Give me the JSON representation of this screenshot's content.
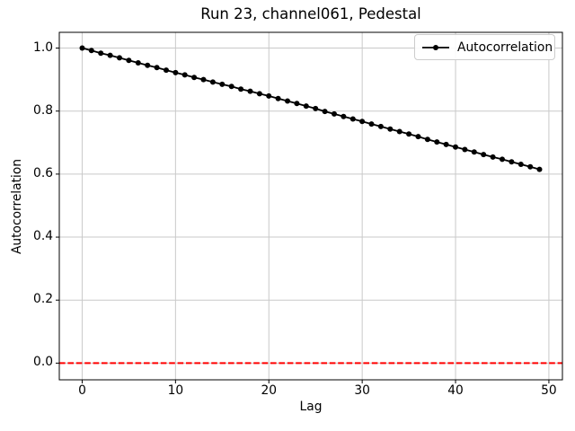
{
  "chart_data": {
    "type": "line",
    "title": "Run 23, channel061, Pedestal",
    "xlabel": "Lag",
    "ylabel": "Autocorrelation",
    "x": [
      0,
      1,
      2,
      3,
      4,
      5,
      6,
      7,
      8,
      9,
      10,
      11,
      12,
      13,
      14,
      15,
      16,
      17,
      18,
      19,
      20,
      21,
      22,
      23,
      24,
      25,
      26,
      27,
      28,
      29,
      30,
      31,
      32,
      33,
      34,
      35,
      36,
      37,
      38,
      39,
      40,
      41,
      42,
      43,
      44,
      45,
      46,
      47,
      48,
      49
    ],
    "series": [
      {
        "name": "Autocorrelation",
        "color": "#000000",
        "marker": "circle",
        "values": [
          1.0,
          0.992,
          0.984,
          0.977,
          0.969,
          0.961,
          0.953,
          0.945,
          0.938,
          0.93,
          0.922,
          0.915,
          0.907,
          0.9,
          0.892,
          0.885,
          0.878,
          0.87,
          0.863,
          0.855,
          0.848,
          0.84,
          0.832,
          0.824,
          0.816,
          0.808,
          0.799,
          0.791,
          0.783,
          0.775,
          0.767,
          0.759,
          0.751,
          0.743,
          0.735,
          0.727,
          0.719,
          0.71,
          0.702,
          0.694,
          0.686,
          0.678,
          0.67,
          0.662,
          0.654,
          0.647,
          0.639,
          0.631,
          0.623,
          0.615
        ]
      }
    ],
    "reference_line": {
      "y": 0.0,
      "color": "#ff0000",
      "style": "dashed"
    },
    "xlim": [
      -2.45,
      51.45
    ],
    "ylim": [
      -0.053,
      1.05
    ],
    "xticks": [
      {
        "label": "0",
        "value": 0
      },
      {
        "label": "10",
        "value": 10
      },
      {
        "label": "20",
        "value": 20
      },
      {
        "label": "30",
        "value": 30
      },
      {
        "label": "40",
        "value": 40
      },
      {
        "label": "50",
        "value": 50
      }
    ],
    "yticks": [
      {
        "label": "0.0",
        "value": 0.0
      },
      {
        "label": "0.2",
        "value": 0.2
      },
      {
        "label": "0.4",
        "value": 0.4
      },
      {
        "label": "0.6",
        "value": 0.6
      },
      {
        "label": "0.8",
        "value": 0.8
      },
      {
        "label": "1.0",
        "value": 1.0
      }
    ],
    "grid": true,
    "grid_color": "#c9c9c9",
    "legend": {
      "position": "upper right",
      "entries": [
        "Autocorrelation"
      ]
    }
  }
}
